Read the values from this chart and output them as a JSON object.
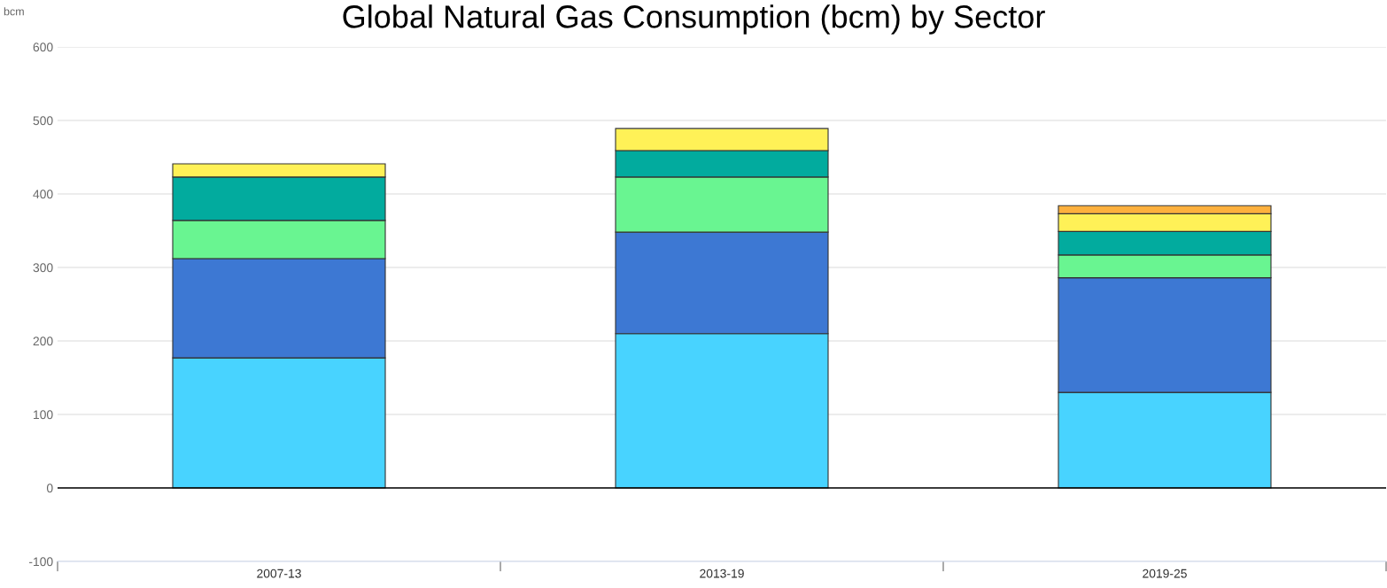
{
  "chart_data": {
    "type": "bar",
    "title": "Global Natural Gas Consumption (bcm) by Sector",
    "ylabel": "bcm",
    "categories": [
      "2007-13",
      "2013-19",
      "2019-25"
    ],
    "stacked": true,
    "series": [
      {
        "color": "#48d3ff",
        "values": [
          177,
          210,
          130
        ]
      },
      {
        "color": "#3d78d3",
        "values": [
          135,
          138,
          156
        ]
      },
      {
        "color": "#69f591",
        "values": [
          52,
          75,
          31
        ]
      },
      {
        "color": "#02ab9e",
        "values": [
          59,
          36,
          32
        ]
      },
      {
        "color": "#fff157",
        "values": [
          18,
          30,
          24
        ]
      },
      {
        "color": "#fdb03d",
        "values": [
          null,
          null,
          11
        ]
      }
    ],
    "ylim": [
      -100,
      600
    ],
    "yticks": [
      -100,
      0,
      100,
      200,
      300,
      400,
      500,
      600
    ],
    "grid": "y",
    "legend": false,
    "ref_lines": [
      {
        "axis": "y",
        "value": 0,
        "color": "#000000"
      }
    ]
  }
}
